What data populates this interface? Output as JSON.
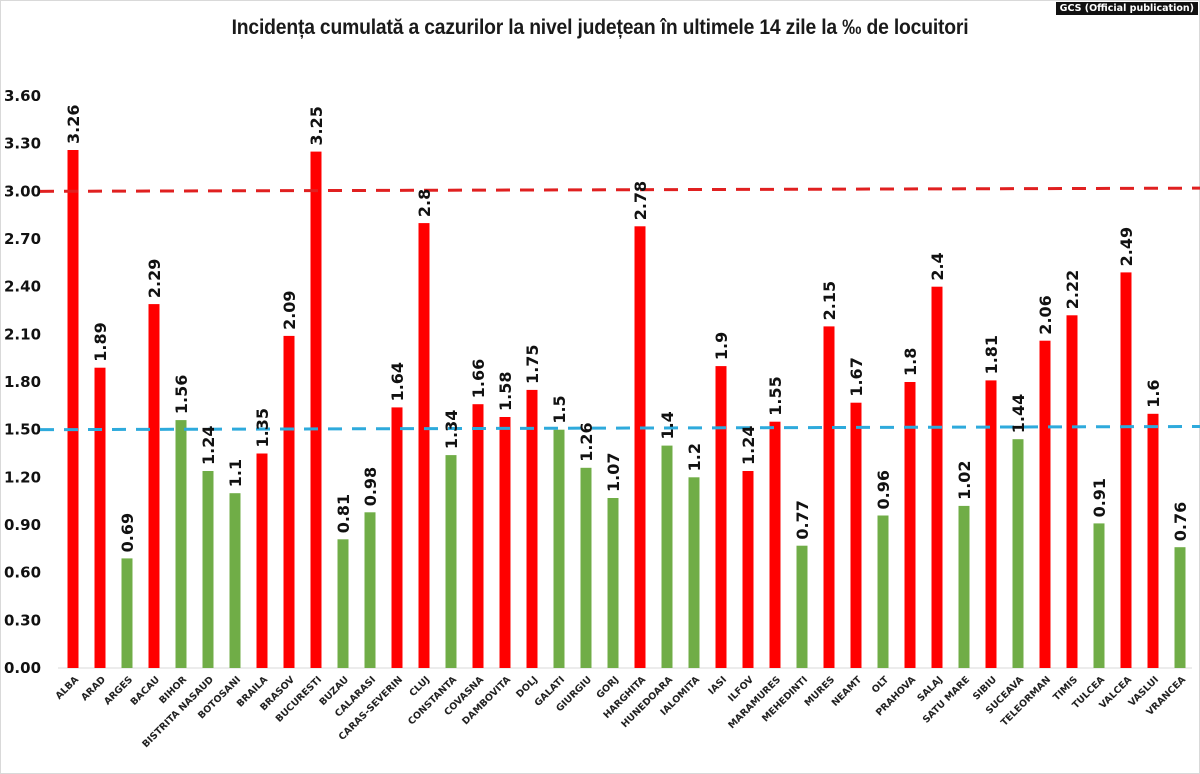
{
  "source_badge": "GCS (Official publication)",
  "chart_data": {
    "type": "bar",
    "title": "Incidența cumulată a cazurilor la nivel județean în ultimele 14 zile la ‰ de locuitori",
    "xlabel": "",
    "ylabel": "",
    "ylim": [
      0,
      3.6
    ],
    "yticks": [
      "0.00",
      "0.30",
      "0.60",
      "0.90",
      "1.20",
      "1.50",
      "1.80",
      "2.10",
      "2.40",
      "2.70",
      "3.00",
      "3.30",
      "3.60"
    ],
    "grid": false,
    "legend": "none",
    "categories": [
      "ALBA",
      "ARAD",
      "ARGES",
      "BACAU",
      "BIHOR",
      "BISTRITA NASAUD",
      "BOTOSANI",
      "BRAILA",
      "BRASOV",
      "BUCURESTI",
      "BUZAU",
      "CALARASI",
      "CARAS-SEVERIN",
      "CLUJ",
      "CONSTANTA",
      "COVASNA",
      "DAMBOVITA",
      "DOLJ",
      "GALATI",
      "GIURGIU",
      "GORJ",
      "HARGHITA",
      "HUNEDOARA",
      "IALOMITA",
      "IASI",
      "ILFOV",
      "MARAMURES",
      "MEHEDINTI",
      "MURES",
      "NEAMT",
      "OLT",
      "PRAHOVA",
      "SALAJ",
      "SATU MARE",
      "SIBIU",
      "SUCEAVA",
      "TELEORMAN",
      "TIMIS",
      "TULCEA",
      "VALCEA",
      "VASLUI",
      "VRANCEA"
    ],
    "values": [
      3.26,
      1.89,
      0.69,
      2.29,
      1.56,
      1.24,
      1.1,
      1.35,
      2.09,
      3.25,
      0.81,
      0.98,
      1.64,
      2.8,
      1.34,
      1.66,
      1.58,
      1.75,
      1.5,
      1.26,
      1.07,
      2.78,
      1.4,
      1.2,
      1.9,
      1.24,
      1.55,
      0.77,
      2.15,
      1.67,
      0.96,
      1.8,
      2.4,
      1.02,
      1.81,
      1.44,
      2.06,
      2.22,
      0.91,
      2.49,
      1.6,
      0.76
    ],
    "value_labels": [
      "3.26",
      "1.89",
      "0.69",
      "2.29",
      "1.56",
      "1.24",
      "1.1",
      "1.35",
      "2.09",
      "3.25",
      "0.81",
      "0.98",
      "1.64",
      "2.8",
      "1.34",
      "1.66",
      "1.58",
      "1.75",
      "1.5",
      "1.26",
      "1.07",
      "2.78",
      "1.4",
      "1.2",
      "1.9",
      "1.24",
      "1.55",
      "0.77",
      "2.15",
      "1.67",
      "0.96",
      "1.8",
      "2.4",
      "1.02",
      "1.81",
      "1.44",
      "2.06",
      "2.22",
      "0.91",
      "2.49",
      "1.6",
      "0.76"
    ],
    "bar_colors": [
      "red",
      "red",
      "green",
      "red",
      "green",
      "green",
      "green",
      "red",
      "red",
      "red",
      "green",
      "green",
      "red",
      "red",
      "green",
      "red",
      "red",
      "red",
      "green",
      "green",
      "green",
      "red",
      "green",
      "green",
      "red",
      "red",
      "red",
      "green",
      "red",
      "red",
      "green",
      "red",
      "red",
      "green",
      "red",
      "green",
      "red",
      "red",
      "green",
      "red",
      "red",
      "green"
    ],
    "palette": {
      "red": "#ff0000",
      "green": "#70ad47"
    },
    "reference_lines": [
      {
        "name": "threshold-3",
        "value": 3.0,
        "color": "#e02020",
        "style": "dashed"
      },
      {
        "name": "threshold-1.5",
        "value": 1.5,
        "color": "#2eaadc",
        "style": "dashed"
      }
    ]
  }
}
